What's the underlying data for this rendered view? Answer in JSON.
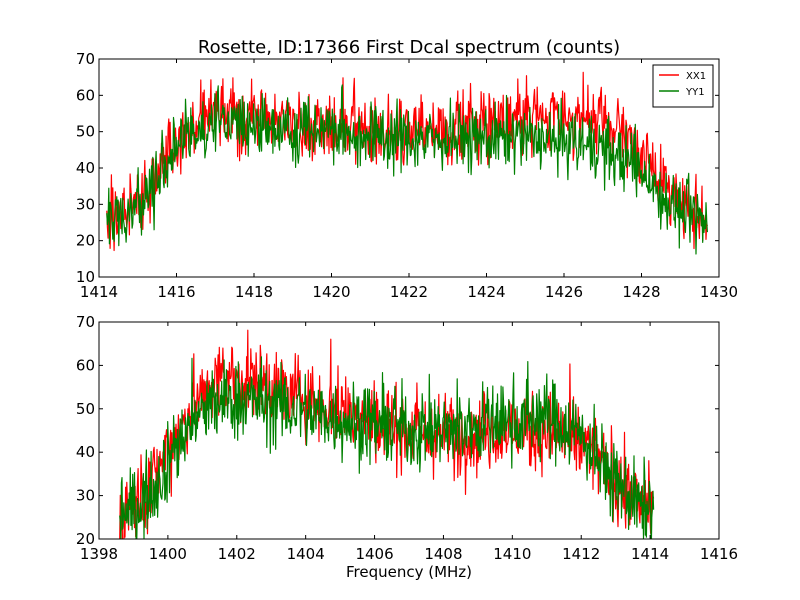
{
  "chart_data": [
    {
      "type": "line",
      "title": "Rosette, ID:17366 First Dcal spectrum (counts)",
      "xlabel": "",
      "ylabel": "",
      "xlim": [
        1414,
        1430
      ],
      "ylim": [
        10,
        70
      ],
      "xticks": [
        "1414",
        "1416",
        "1418",
        "1420",
        "1422",
        "1424",
        "1426",
        "1428",
        "1430"
      ],
      "yticks": [
        "10",
        "20",
        "30",
        "40",
        "50",
        "60",
        "70"
      ],
      "legend": {
        "position": "top-right"
      },
      "grid": false,
      "series": [
        {
          "name": "XX1",
          "color": "#ff0000",
          "points": [
            [
              1414.2,
              27
            ],
            [
              1414.6,
              28
            ],
            [
              1415.0,
              31
            ],
            [
              1415.4,
              36
            ],
            [
              1415.8,
              44
            ],
            [
              1416.2,
              49
            ],
            [
              1416.6,
              53
            ],
            [
              1417.0,
              55
            ],
            [
              1417.4,
              55
            ],
            [
              1417.8,
              54
            ],
            [
              1418.2,
              53
            ],
            [
              1418.6,
              53
            ],
            [
              1419.0,
              52
            ],
            [
              1419.4,
              52
            ],
            [
              1419.8,
              51
            ],
            [
              1420.2,
              51
            ],
            [
              1420.6,
              51
            ],
            [
              1421.0,
              50
            ],
            [
              1421.4,
              50
            ],
            [
              1421.8,
              50
            ],
            [
              1422.2,
              50
            ],
            [
              1422.6,
              50
            ],
            [
              1423.0,
              51
            ],
            [
              1423.4,
              51
            ],
            [
              1423.8,
              52
            ],
            [
              1424.2,
              53
            ],
            [
              1424.6,
              54
            ],
            [
              1425.0,
              54
            ],
            [
              1425.4,
              54
            ],
            [
              1425.8,
              55
            ],
            [
              1426.2,
              54
            ],
            [
              1426.6,
              53
            ],
            [
              1427.0,
              52
            ],
            [
              1427.4,
              50
            ],
            [
              1427.8,
              46
            ],
            [
              1428.2,
              41
            ],
            [
              1428.6,
              35
            ],
            [
              1429.0,
              31
            ],
            [
              1429.4,
              28
            ],
            [
              1429.7,
              27
            ]
          ],
          "noise": 5
        },
        {
          "name": "YY1",
          "color": "#008000",
          "points": [
            [
              1414.2,
              25
            ],
            [
              1414.6,
              26
            ],
            [
              1415.0,
              30
            ],
            [
              1415.4,
              35
            ],
            [
              1415.8,
              43
            ],
            [
              1416.2,
              48
            ],
            [
              1416.6,
              52
            ],
            [
              1417.0,
              53
            ],
            [
              1417.4,
              53
            ],
            [
              1417.8,
              52
            ],
            [
              1418.2,
              52
            ],
            [
              1418.6,
              51
            ],
            [
              1419.0,
              51
            ],
            [
              1419.4,
              51
            ],
            [
              1419.8,
              50
            ],
            [
              1420.2,
              50
            ],
            [
              1420.6,
              49
            ],
            [
              1421.0,
              49
            ],
            [
              1421.4,
              49
            ],
            [
              1421.8,
              48
            ],
            [
              1422.2,
              48
            ],
            [
              1422.6,
              48
            ],
            [
              1423.0,
              48
            ],
            [
              1423.4,
              48
            ],
            [
              1423.8,
              48
            ],
            [
              1424.2,
              48
            ],
            [
              1424.6,
              48
            ],
            [
              1425.0,
              48
            ],
            [
              1425.4,
              48
            ],
            [
              1425.8,
              47
            ],
            [
              1426.2,
              47
            ],
            [
              1426.6,
              46
            ],
            [
              1427.0,
              45
            ],
            [
              1427.4,
              43
            ],
            [
              1427.8,
              41
            ],
            [
              1428.2,
              37
            ],
            [
              1428.6,
              32
            ],
            [
              1429.0,
              28
            ],
            [
              1429.4,
              26
            ],
            [
              1429.7,
              24
            ]
          ],
          "noise": 5
        }
      ]
    },
    {
      "type": "line",
      "title": "",
      "xlabel": "Frequency (MHz)",
      "ylabel": "",
      "xlim": [
        1398,
        1416
      ],
      "ylim": [
        20,
        70
      ],
      "xticks": [
        "1398",
        "1400",
        "1402",
        "1404",
        "1406",
        "1408",
        "1410",
        "1412",
        "1414",
        "1416"
      ],
      "yticks": [
        "20",
        "30",
        "40",
        "50",
        "60",
        "70"
      ],
      "grid": false,
      "series": [
        {
          "name": "",
          "color": "#ff0000",
          "points": [
            [
              1398.6,
              26
            ],
            [
              1399.0,
              28
            ],
            [
              1399.4,
              31
            ],
            [
              1399.8,
              37
            ],
            [
              1400.2,
              44
            ],
            [
              1400.6,
              49
            ],
            [
              1401.0,
              53
            ],
            [
              1401.4,
              56
            ],
            [
              1401.8,
              57
            ],
            [
              1402.2,
              57
            ],
            [
              1402.6,
              56
            ],
            [
              1403.0,
              55
            ],
            [
              1403.4,
              54
            ],
            [
              1403.8,
              53
            ],
            [
              1404.2,
              52
            ],
            [
              1404.6,
              51
            ],
            [
              1405.0,
              50
            ],
            [
              1405.4,
              49
            ],
            [
              1405.8,
              48
            ],
            [
              1406.2,
              47
            ],
            [
              1406.6,
              46
            ],
            [
              1407.0,
              45
            ],
            [
              1407.4,
              44
            ],
            [
              1407.8,
              44
            ],
            [
              1408.2,
              44
            ],
            [
              1408.6,
              44
            ],
            [
              1409.0,
              44
            ],
            [
              1409.4,
              45
            ],
            [
              1409.8,
              45
            ],
            [
              1410.2,
              45
            ],
            [
              1410.6,
              45
            ],
            [
              1411.0,
              45
            ],
            [
              1411.4,
              44
            ],
            [
              1411.8,
              43
            ],
            [
              1412.2,
              41
            ],
            [
              1412.6,
              37
            ],
            [
              1413.0,
              33
            ],
            [
              1413.4,
              30
            ],
            [
              1413.8,
              28
            ],
            [
              1414.1,
              27
            ]
          ],
          "noise": 5
        },
        {
          "name": "",
          "color": "#008000",
          "points": [
            [
              1398.6,
              25
            ],
            [
              1399.0,
              27
            ],
            [
              1399.4,
              30
            ],
            [
              1399.8,
              35
            ],
            [
              1400.2,
              41
            ],
            [
              1400.6,
              46
            ],
            [
              1401.0,
              49
            ],
            [
              1401.4,
              51
            ],
            [
              1401.8,
              52
            ],
            [
              1402.2,
              52
            ],
            [
              1402.6,
              52
            ],
            [
              1403.0,
              51
            ],
            [
              1403.4,
              50
            ],
            [
              1403.8,
              50
            ],
            [
              1404.2,
              49
            ],
            [
              1404.6,
              48
            ],
            [
              1405.0,
              48
            ],
            [
              1405.4,
              47
            ],
            [
              1405.8,
              47
            ],
            [
              1406.2,
              46
            ],
            [
              1406.6,
              46
            ],
            [
              1407.0,
              45
            ],
            [
              1407.4,
              45
            ],
            [
              1407.8,
              45
            ],
            [
              1408.2,
              45
            ],
            [
              1408.6,
              46
            ],
            [
              1409.0,
              46
            ],
            [
              1409.4,
              47
            ],
            [
              1409.8,
              47
            ],
            [
              1410.2,
              48
            ],
            [
              1410.6,
              48
            ],
            [
              1411.0,
              48
            ],
            [
              1411.4,
              47
            ],
            [
              1411.8,
              45
            ],
            [
              1412.2,
              42
            ],
            [
              1412.6,
              37
            ],
            [
              1413.0,
              33
            ],
            [
              1413.4,
              30
            ],
            [
              1413.8,
              27
            ],
            [
              1414.1,
              26
            ]
          ],
          "noise": 5
        }
      ]
    }
  ]
}
